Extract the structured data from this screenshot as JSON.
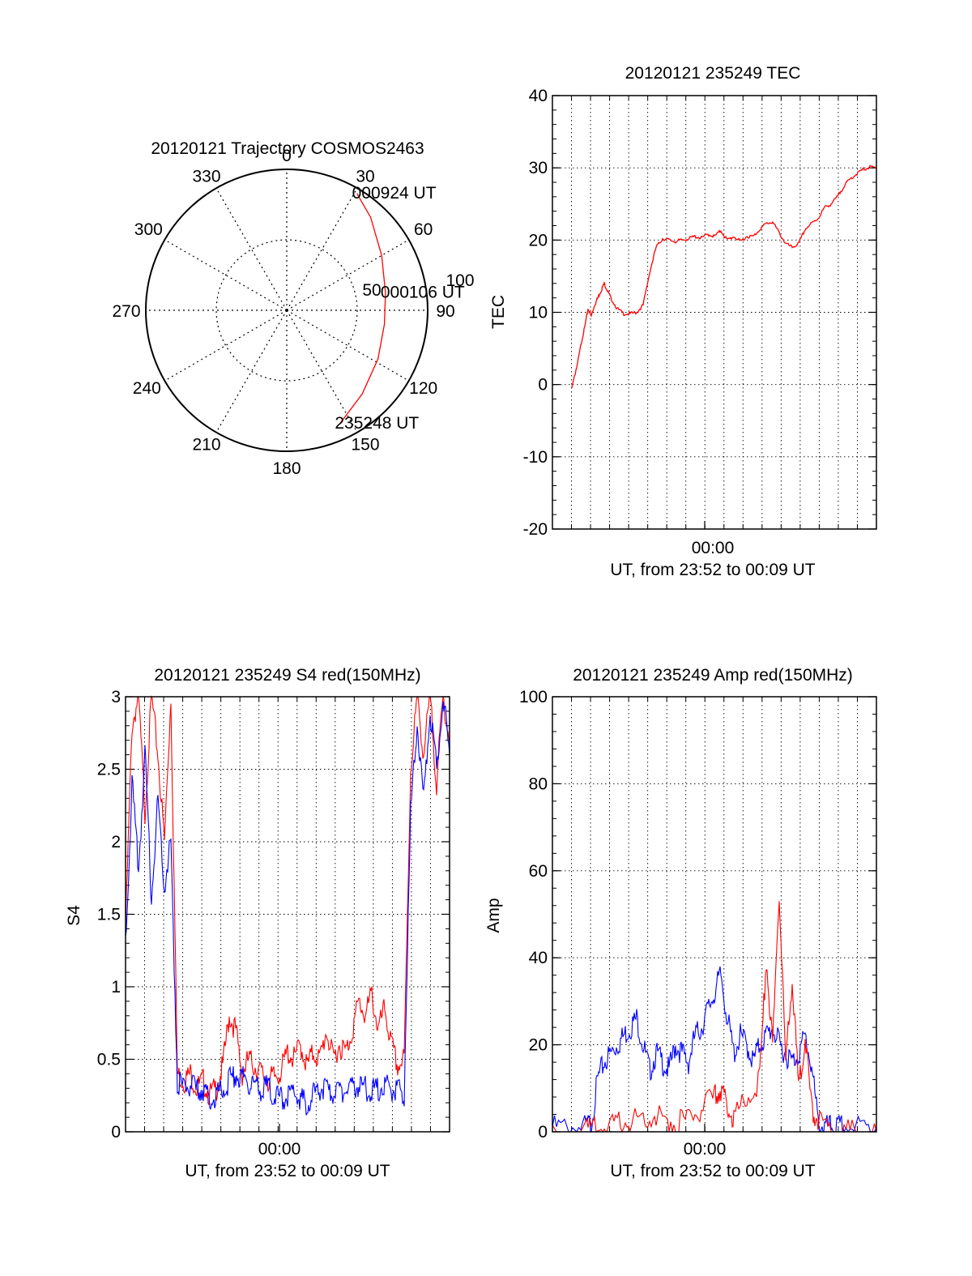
{
  "colors": {
    "red": "#ff0000",
    "blue": "#0000ff",
    "axis": "#000000",
    "grid": "#000000"
  },
  "chart_data": [
    {
      "type": "polar",
      "title": "20120121 Trajectory COSMOS2463",
      "angle_labels": [
        "0",
        "30",
        "60",
        "90",
        "120",
        "150",
        "180",
        "210",
        "240",
        "270",
        "300",
        "330"
      ],
      "radial_labels": [
        "50",
        "100"
      ],
      "series": [
        {
          "color": "#ff0000",
          "points": [
            {
              "az": 155,
              "el": 10
            },
            {
              "az": 138,
              "el": 18
            },
            {
              "az": 118,
              "el": 24
            },
            {
              "az": 98,
              "el": 27
            },
            {
              "az": 80,
              "el": 26
            },
            {
              "az": 60,
              "el": 20
            },
            {
              "az": 42,
              "el": 10
            },
            {
              "az": 31,
              "el": 3
            }
          ]
        }
      ],
      "annotations": [
        {
          "text": "235248 UT",
          "az": 155,
          "el": 10
        },
        {
          "text": "000106 UT",
          "az": 80,
          "el": 26
        },
        {
          "text": "000924 UT",
          "az": 31,
          "el": 3
        }
      ]
    },
    {
      "type": "line",
      "title": "20120121 235249 TEC",
      "xlabel": "UT, from 23:52 to 00:09 UT",
      "ylabel": "TEC",
      "x_tick_label": "00:00",
      "ylim": [
        -20,
        40
      ],
      "yticks": [
        "-20",
        "-10",
        "0",
        "10",
        "20",
        "30",
        "40"
      ],
      "grid": true,
      "series": [
        {
          "color": "#ff0000",
          "x": [
            0.06,
            0.07,
            0.08,
            0.09,
            0.1,
            0.11,
            0.12,
            0.13,
            0.14,
            0.15,
            0.16,
            0.17,
            0.18,
            0.2,
            0.22,
            0.24,
            0.26,
            0.28,
            0.3,
            0.32,
            0.34,
            0.36,
            0.38,
            0.4,
            0.42,
            0.44,
            0.46,
            0.48,
            0.5,
            0.52,
            0.54,
            0.56,
            0.58,
            0.6,
            0.62,
            0.64,
            0.66,
            0.68,
            0.7,
            0.72,
            0.74,
            0.76,
            0.78,
            0.8,
            0.82,
            0.84,
            0.86,
            0.88,
            0.9,
            0.92,
            0.94,
            0.96,
            0.98,
            1.0
          ],
          "y": [
            -0.5,
            1.5,
            3.5,
            6.0,
            8.0,
            10.5,
            9.5,
            11.0,
            12.0,
            13.0,
            14.0,
            13.0,
            12.0,
            10.5,
            9.8,
            9.8,
            10.0,
            11.0,
            15.5,
            19.0,
            20.2,
            20.0,
            19.8,
            20.0,
            20.2,
            20.5,
            20.3,
            20.8,
            20.5,
            21.3,
            20.0,
            20.5,
            19.8,
            20.5,
            20.5,
            21.5,
            22.3,
            22.5,
            21.0,
            19.5,
            19.0,
            19.5,
            21.5,
            22.3,
            23.0,
            24.5,
            25.0,
            26.0,
            27.5,
            28.5,
            29.2,
            29.8,
            30.1,
            30.0
          ]
        }
      ]
    },
    {
      "type": "line",
      "title": "20120121 235249 S4 red(150MHz)",
      "xlabel": "UT, from 23:52 to 00:09 UT",
      "ylabel": "S4",
      "x_tick_label": "00:00",
      "ylim": [
        0,
        3
      ],
      "yticks": [
        "0",
        "0.5",
        "1",
        "1.5",
        "2",
        "2.5",
        "3"
      ],
      "grid": true,
      "series": [
        {
          "color": "#ff0000",
          "x": [
            0.0,
            0.02,
            0.04,
            0.06,
            0.08,
            0.1,
            0.12,
            0.14,
            0.16,
            0.18,
            0.2,
            0.22,
            0.24,
            0.26,
            0.28,
            0.3,
            0.32,
            0.34,
            0.36,
            0.38,
            0.4,
            0.42,
            0.44,
            0.46,
            0.48,
            0.5,
            0.52,
            0.54,
            0.56,
            0.58,
            0.6,
            0.62,
            0.64,
            0.66,
            0.68,
            0.7,
            0.72,
            0.74,
            0.76,
            0.78,
            0.8,
            0.82,
            0.84,
            0.86,
            0.88,
            0.9,
            0.92,
            0.94,
            0.96,
            0.98,
            1.0
          ],
          "y": [
            1.4,
            2.8,
            3.0,
            2.2,
            3.0,
            2.6,
            2.0,
            3.0,
            0.4,
            0.35,
            0.4,
            0.3,
            0.35,
            0.25,
            0.3,
            0.45,
            0.8,
            0.7,
            0.4,
            0.5,
            0.45,
            0.4,
            0.35,
            0.38,
            0.42,
            0.55,
            0.5,
            0.6,
            0.45,
            0.55,
            0.5,
            0.7,
            0.5,
            0.6,
            0.55,
            0.7,
            0.9,
            0.8,
            0.95,
            0.7,
            0.85,
            0.6,
            0.45,
            0.5,
            2.5,
            3.0,
            2.6,
            3.0,
            2.4,
            3.0,
            2.7
          ]
        },
        {
          "color": "#0000ff",
          "x": [
            0.0,
            0.02,
            0.04,
            0.06,
            0.08,
            0.1,
            0.12,
            0.14,
            0.16,
            0.18,
            0.2,
            0.22,
            0.24,
            0.26,
            0.28,
            0.3,
            0.32,
            0.34,
            0.36,
            0.38,
            0.4,
            0.42,
            0.44,
            0.46,
            0.48,
            0.5,
            0.52,
            0.54,
            0.56,
            0.58,
            0.6,
            0.62,
            0.64,
            0.66,
            0.68,
            0.7,
            0.72,
            0.74,
            0.76,
            0.78,
            0.8,
            0.82,
            0.84,
            0.86,
            0.88,
            0.9,
            0.92,
            0.94,
            0.96,
            0.98,
            1.0
          ],
          "y": [
            1.3,
            2.4,
            1.8,
            2.6,
            1.6,
            2.3,
            1.7,
            2.0,
            0.35,
            0.3,
            0.32,
            0.28,
            0.3,
            0.22,
            0.25,
            0.3,
            0.35,
            0.4,
            0.38,
            0.35,
            0.3,
            0.28,
            0.32,
            0.25,
            0.22,
            0.25,
            0.28,
            0.22,
            0.2,
            0.25,
            0.3,
            0.28,
            0.25,
            0.3,
            0.28,
            0.3,
            0.32,
            0.3,
            0.28,
            0.3,
            0.32,
            0.3,
            0.28,
            0.25,
            2.2,
            2.8,
            2.3,
            2.9,
            2.5,
            3.0,
            2.6
          ]
        }
      ]
    },
    {
      "type": "line",
      "title": "20120121 235249 Amp red(150MHz)",
      "xlabel": "UT, from 23:52 to 00:09 UT",
      "ylabel": "Amp",
      "x_tick_label": "00:00",
      "ylim": [
        0,
        100
      ],
      "yticks": [
        "0",
        "20",
        "40",
        "60",
        "80",
        "100"
      ],
      "grid": true,
      "series": [
        {
          "color": "#0000ff",
          "x": [
            0.0,
            0.05,
            0.1,
            0.12,
            0.14,
            0.16,
            0.18,
            0.2,
            0.22,
            0.24,
            0.26,
            0.28,
            0.3,
            0.32,
            0.34,
            0.36,
            0.38,
            0.4,
            0.42,
            0.44,
            0.46,
            0.48,
            0.5,
            0.52,
            0.54,
            0.56,
            0.58,
            0.6,
            0.62,
            0.64,
            0.66,
            0.68,
            0.7,
            0.72,
            0.74,
            0.76,
            0.78,
            0.8,
            0.82,
            0.84,
            0.86,
            0.88,
            0.9,
            0.95,
            1.0
          ],
          "y": [
            1,
            1,
            1,
            2,
            12,
            16,
            18,
            20,
            22,
            24,
            26,
            20,
            14,
            18,
            16,
            14,
            20,
            18,
            16,
            22,
            24,
            28,
            32,
            36,
            26,
            18,
            22,
            20,
            16,
            20,
            22,
            24,
            20,
            18,
            16,
            18,
            22,
            15,
            2,
            1,
            1,
            1,
            1,
            1,
            1
          ]
        },
        {
          "color": "#ff0000",
          "x": [
            0.0,
            0.1,
            0.14,
            0.18,
            0.22,
            0.26,
            0.3,
            0.34,
            0.38,
            0.42,
            0.46,
            0.5,
            0.52,
            0.54,
            0.56,
            0.6,
            0.64,
            0.66,
            0.68,
            0.7,
            0.72,
            0.74,
            0.76,
            0.78,
            0.8,
            0.82,
            0.86,
            0.9,
            0.95,
            1.0
          ],
          "y": [
            0,
            0,
            0.5,
            1,
            2,
            3,
            4,
            3,
            2,
            3,
            5,
            8,
            10,
            6,
            3,
            8,
            12,
            40,
            20,
            56,
            15,
            35,
            10,
            22,
            5,
            3,
            0,
            0,
            0,
            0
          ]
        }
      ]
    }
  ]
}
